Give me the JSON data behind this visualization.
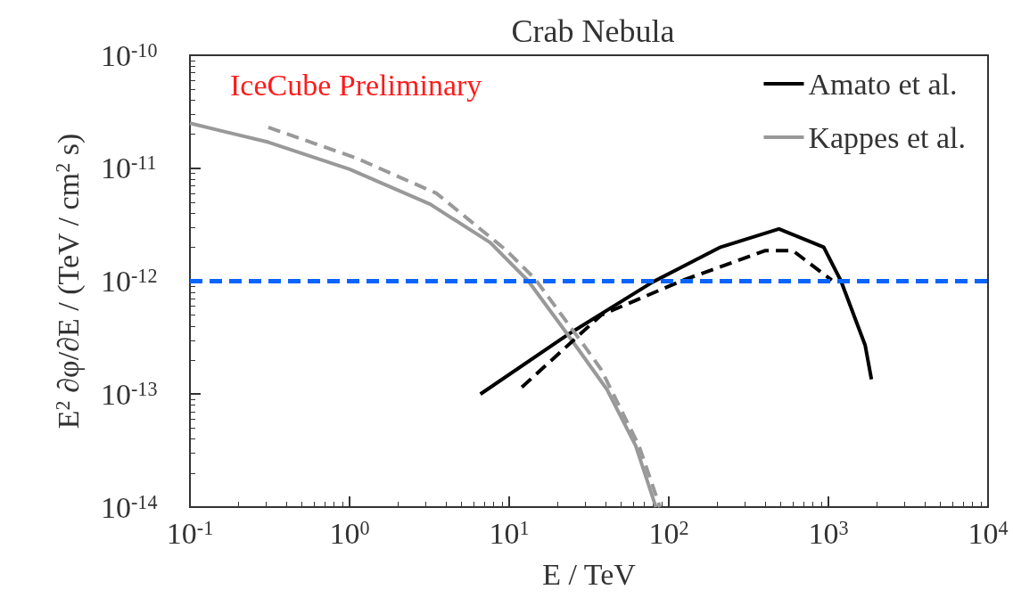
{
  "chart_data": {
    "type": "line",
    "title": "Crab Nebula",
    "xlabel": "E / TeV",
    "ylabel": "E$^{2}$ ∂φ/∂E / (TeV / cm$^{2}$ s)",
    "annotations": [
      "IceCube Preliminary"
    ],
    "log": "xy",
    "grid": false,
    "legend": "top right",
    "marker": "none",
    "xlim": [
      0.1,
      10000
    ],
    "ylim": [
      1e-14,
      1e-10
    ],
    "xticks": [
      {
        "value": 0.1,
        "label": "10$^{-1}$"
      },
      {
        "value": 1,
        "label": "10$^{0}$"
      },
      {
        "value": 10,
        "label": "10$^{1}$"
      },
      {
        "value": 100,
        "label": "10$^{2}$"
      },
      {
        "value": 1000,
        "label": "10$^{3}$"
      },
      {
        "value": 10000,
        "label": "10$^{4}$"
      }
    ],
    "yticks": [
      {
        "value": 1e-14,
        "label": "10$^{-14}$"
      },
      {
        "value": 1e-13,
        "label": "10$^{-13}$"
      },
      {
        "value": 1e-12,
        "label": "10$^{-12}$"
      },
      {
        "value": 1e-11,
        "label": "10$^{-11}$"
      },
      {
        "value": 1e-10,
        "label": "10$^{-10}$"
      }
    ],
    "ref_lines": [
      {
        "axis": "y",
        "value": 1e-12,
        "label": null,
        "color": "#0a64ff",
        "line_style": "dashed"
      }
    ],
    "series": [
      {
        "name": "Amato et al.",
        "color": "#000000",
        "line_style": "solid",
        "x": [
          6.6,
          22.8,
          79,
          211,
          490,
          935,
          1200,
          1700,
          1860
        ],
        "values": [
          1e-13,
          3.3e-13,
          9.8e-13,
          2e-12,
          2.9e-12,
          2e-12,
          1e-12,
          2.7e-13,
          1.35e-13
        ]
      },
      {
        "name": "Kappes et al.",
        "color": "#999999",
        "line_style": "solid",
        "x": [
          0.1,
          0.31,
          1,
          3.2,
          7.6,
          13.2,
          23.5,
          41,
          62,
          83
        ],
        "values": [
          2.5e-11,
          1.7e-11,
          9.8e-12,
          4.8e-12,
          2.2e-12,
          1e-12,
          3.3e-13,
          1.1e-13,
          3.5e-14,
          1e-14
        ]
      },
      {
        "color": "#000000",
        "line_style": "dashed",
        "x": [
          12,
          37.6,
          123,
          400,
          600,
          1050
        ],
        "values": [
          1.15e-13,
          5e-13,
          1.02e-12,
          1.86e-12,
          1.86e-12,
          1.02e-12
        ]
      },
      {
        "color": "#999999",
        "line_style": "dashed",
        "x": [
          0.31,
          1.1,
          3.5,
          9.5,
          14.5,
          30,
          37.6,
          65,
          88
        ],
        "values": [
          2.3e-11,
          1.23e-11,
          6e-12,
          1.9e-12,
          1.05e-12,
          2.6e-13,
          1.66e-13,
          3.5e-14,
          1e-14
        ]
      }
    ]
  }
}
